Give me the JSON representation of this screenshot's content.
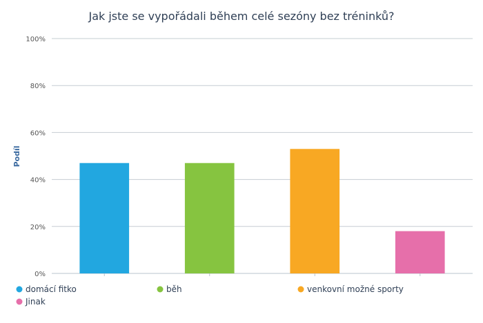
{
  "chart_data": {
    "type": "bar",
    "title": "Jak jste se vypořádali během celé sezóny bez tréninků?",
    "ylabel": "Podíl",
    "xlabel": "",
    "ylim": [
      0,
      100
    ],
    "y_ticks": [
      "0%",
      "20%",
      "40%",
      "60%",
      "80%",
      "100%"
    ],
    "y_tick_values": [
      0,
      20,
      40,
      60,
      80,
      100
    ],
    "grid": true,
    "legend_position": "bottom",
    "categories": [
      "domácí fitko",
      "běh",
      "venkovní možné sporty",
      "Jinak"
    ],
    "values": [
      47,
      47,
      53,
      18
    ],
    "colors": [
      "#22a7e0",
      "#86c440",
      "#f8a823",
      "#e66faa"
    ]
  }
}
